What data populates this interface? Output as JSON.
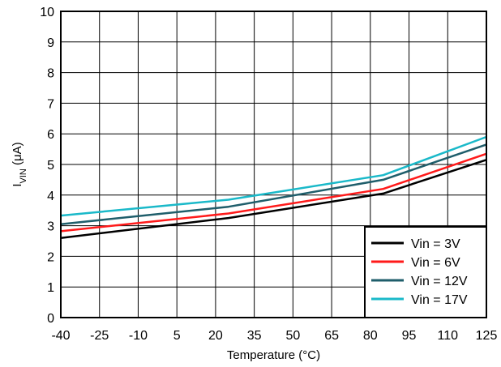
{
  "chart_data": {
    "type": "line",
    "xlabel": "Temperature (°C)",
    "ylabel": {
      "main": "I",
      "sub": "VIN",
      "unit": " (μA)"
    },
    "xlim": [
      -40,
      125
    ],
    "ylim": [
      0,
      10
    ],
    "x_ticks": [
      -40,
      -25,
      -10,
      5,
      20,
      35,
      50,
      65,
      80,
      95,
      110,
      125
    ],
    "y_ticks": [
      0,
      1,
      2,
      3,
      4,
      5,
      6,
      7,
      8,
      9,
      10
    ],
    "grid": true,
    "legend_position": "bottom-right",
    "series": [
      {
        "name": "Vin = 3V",
        "color": "#000000",
        "points": [
          [
            -40,
            2.6
          ],
          [
            25,
            3.25
          ],
          [
            85,
            4.05
          ],
          [
            125,
            5.15
          ]
        ]
      },
      {
        "name": "Vin = 6V",
        "color": "#ff1a1a",
        "points": [
          [
            -40,
            2.82
          ],
          [
            25,
            3.4
          ],
          [
            85,
            4.2
          ],
          [
            125,
            5.35
          ]
        ]
      },
      {
        "name": "Vin = 12V",
        "color": "#1f5e6b",
        "points": [
          [
            -40,
            3.05
          ],
          [
            25,
            3.62
          ],
          [
            85,
            4.5
          ],
          [
            125,
            5.65
          ]
        ]
      },
      {
        "name": "Vin = 17V",
        "color": "#1ab9c9",
        "points": [
          [
            -40,
            3.33
          ],
          [
            25,
            3.85
          ],
          [
            85,
            4.65
          ],
          [
            125,
            5.9
          ]
        ]
      }
    ]
  }
}
